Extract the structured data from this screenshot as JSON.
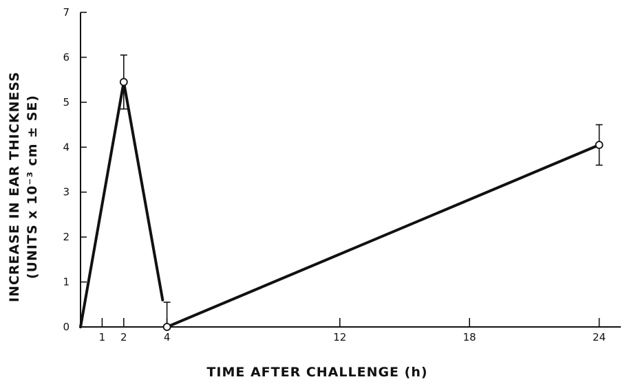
{
  "chart_data": {
    "type": "line",
    "title": "",
    "xlabel": "TIME AFTER CHALLENGE (h)",
    "ylabel_line1": "INCREASE IN EAR THICKNESS",
    "ylabel_line2": "(UNITS x 10⁻³ cm ± SE)",
    "xlim": [
      0,
      25
    ],
    "ylim": [
      0,
      7
    ],
    "xticks": [
      1,
      2,
      4,
      12,
      18,
      24
    ],
    "yticks": [
      0,
      1,
      2,
      3,
      4,
      5,
      6,
      7
    ],
    "grid": false,
    "legend": "none",
    "series": [
      {
        "segments": [
          [
            [
              0,
              0
            ],
            [
              2,
              5.45
            ],
            [
              3.8,
              0.6
            ]
          ],
          [
            [
              4,
              0
            ],
            [
              24,
              4.05
            ]
          ]
        ]
      }
    ],
    "points": [
      {
        "x": 2,
        "y": 5.45,
        "err_plus": 0.6,
        "err_minus": 0.6
      },
      {
        "x": 4,
        "y": 0.0,
        "err_plus": 0.55,
        "err_minus": 0
      },
      {
        "x": 24,
        "y": 4.05,
        "err_plus": 0.45,
        "err_minus": 0.45
      }
    ]
  }
}
